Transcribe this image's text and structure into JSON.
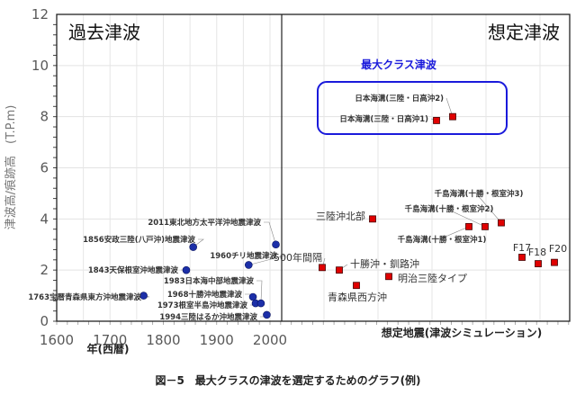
{
  "caption": "図－5　最大クラスの津波を選定するためのグラフ(例)",
  "chart_data": {
    "type": "scatter",
    "title": "",
    "ylabel": "津波高/痕跡高　(T.P.m)",
    "xlabel_left": "年(西暦)",
    "xlabel_right": "想定地震(津波シミュレーション)",
    "ylim": [
      0,
      12
    ],
    "yticks": [
      0,
      2,
      4,
      6,
      8,
      10,
      12
    ],
    "xlim_left": [
      1600,
      2022
    ],
    "xticks_left": [
      1600,
      1700,
      1800,
      1900,
      2000
    ],
    "grid": true,
    "panels": {
      "left_title": "過去津波",
      "right_title": "想定津波"
    },
    "highlight": {
      "label": "最大クラス津波",
      "color": "#1a1adb"
    },
    "colors": {
      "past": "#1c2fa8",
      "scenario": "#e00000",
      "highlight_box": "#1a1adb"
    },
    "series": [
      {
        "name": "過去津波",
        "marker": "circle",
        "points": [
          {
            "label": "1763宝暦青森県東方沖地震津波",
            "x": 1763,
            "y": 1.0
          },
          {
            "label": "1843天保根室沖地震津波",
            "x": 1843,
            "y": 2.0
          },
          {
            "label": "1856安政三陸(八戸沖)地震津波",
            "x": 1856,
            "y": 2.9
          },
          {
            "label": "1960チリ地震津波",
            "x": 1960,
            "y": 2.2
          },
          {
            "label": "1968十勝沖地震津波",
            "x": 1968,
            "y": 0.95
          },
          {
            "label": "1973根室半島沖地震津波",
            "x": 1973,
            "y": 0.7
          },
          {
            "label": "1983日本海中部地震津波",
            "x": 1983,
            "y": 0.7
          },
          {
            "label": "1994三陸はるか沖地震津波",
            "x": 1994,
            "y": 0.25
          },
          {
            "label": "2011東北地方太平洋沖地震津波",
            "x": 2011,
            "y": 3.0
          }
        ]
      },
      {
        "name": "想定津波",
        "marker": "square",
        "points": [
          {
            "label": "500年間隔",
            "i": 1,
            "y": 2.1
          },
          {
            "label": "十勝沖・釧路沖",
            "i": 2,
            "y": 2.0
          },
          {
            "label": "青森県西方沖",
            "i": 3,
            "y": 1.4
          },
          {
            "label": "三陸沖北部",
            "i": 4,
            "y": 4.0
          },
          {
            "label": "明治三陸タイプ",
            "i": 5,
            "y": 1.75
          },
          {
            "label": "日本海溝(三陸・日高沖1)",
            "i": 6,
            "y": 7.85
          },
          {
            "label": "日本海溝(三陸・日高沖2)",
            "i": 7,
            "y": 8.0
          },
          {
            "label": "千島海溝(十勝・根室沖1)",
            "i": 8,
            "y": 3.7
          },
          {
            "label": "千島海溝(十勝・根室沖2)",
            "i": 9,
            "y": 3.7
          },
          {
            "label": "千島海溝(十勝・根室沖3)",
            "i": 10,
            "y": 3.85
          },
          {
            "label": "F17",
            "i": 11,
            "y": 2.5
          },
          {
            "label": "F18",
            "i": 12,
            "y": 2.25
          },
          {
            "label": "F20",
            "i": 13,
            "y": 2.3
          }
        ]
      }
    ]
  }
}
